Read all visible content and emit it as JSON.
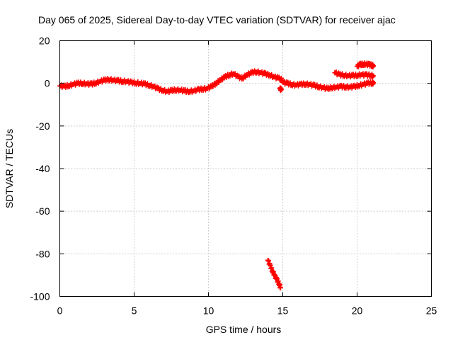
{
  "chart_data": {
    "type": "scatter",
    "title": "Day 065 of 2025, Sidereal Day-to-day VTEC variation (SDTVAR) for receiver ajac",
    "xlabel": "GPS time / hours",
    "ylabel": "SDTVAR / TECUs",
    "xlim": [
      0,
      25
    ],
    "ylim": [
      -100,
      20
    ],
    "xticks": [
      "0",
      "5",
      "10",
      "15",
      "20",
      "25"
    ],
    "yticks": [
      "20",
      "0",
      "-20",
      "-40",
      "-60",
      "-80",
      "-100"
    ],
    "grid": true,
    "marker": "plus",
    "color": "#ff0000",
    "series": [
      {
        "x": [
          0.0,
          0.3,
          0.6,
          0.9,
          1.2,
          1.5,
          1.8,
          2.1,
          2.4,
          2.7,
          3.0,
          3.3,
          3.6,
          3.9,
          4.2,
          4.5,
          4.8,
          5.1,
          5.4,
          5.7,
          6.0,
          6.3,
          6.6,
          6.9,
          7.2,
          7.5,
          7.8,
          8.1,
          8.4,
          8.7,
          9.0,
          9.3,
          9.6,
          9.9,
          10.2,
          10.5,
          10.8,
          11.1,
          11.4,
          11.7,
          12.0,
          12.3,
          12.6,
          12.9,
          13.2,
          13.5,
          13.8,
          14.1,
          14.4,
          14.7,
          15.0
        ],
        "y": [
          -1.2,
          -1.5,
          -1.0,
          -0.5,
          0.0,
          0.0,
          -0.2,
          -0.4,
          0.2,
          0.8,
          1.5,
          1.8,
          1.5,
          1.2,
          1.0,
          0.8,
          0.5,
          0.2,
          0.0,
          -0.3,
          -0.8,
          -1.5,
          -2.5,
          -3.2,
          -3.8,
          -3.5,
          -3.0,
          -3.2,
          -3.6,
          -3.8,
          -3.5,
          -3.0,
          -2.6,
          -2.5,
          -1.5,
          0.0,
          1.5,
          3.0,
          4.0,
          4.5,
          3.0,
          2.5,
          4.0,
          5.0,
          5.5,
          5.0,
          4.5,
          4.0,
          3.0,
          2.5,
          1.5
        ]
      },
      {
        "x": [
          14.8,
          14.9
        ],
        "y": [
          -2.5,
          -3.0
        ]
      },
      {
        "x": [
          15.0,
          15.3,
          15.6,
          15.9,
          16.2,
          16.5,
          16.8,
          17.1,
          17.4,
          17.7,
          18.0,
          18.3,
          18.6,
          18.9,
          19.2,
          19.5,
          19.8,
          20.1,
          20.4,
          20.7,
          21.0,
          21.1
        ],
        "y": [
          0.5,
          0.0,
          -0.5,
          -0.8,
          -0.5,
          -0.3,
          -0.5,
          -1.0,
          -1.5,
          -2.0,
          -2.5,
          -2.0,
          -1.8,
          -1.5,
          -1.6,
          -1.8,
          -1.5,
          -1.0,
          -0.5,
          0.0,
          0.2,
          0.3
        ]
      },
      {
        "x": [
          18.5,
          18.8,
          19.1,
          19.4,
          19.7,
          20.0,
          20.3,
          20.6,
          20.9,
          21.1
        ],
        "y": [
          5.0,
          4.2,
          3.8,
          3.6,
          3.6,
          3.8,
          4.0,
          4.0,
          3.8,
          3.5
        ]
      },
      {
        "x": [
          20.0,
          20.2,
          20.4,
          20.6,
          20.8,
          21.0,
          21.1
        ],
        "y": [
          8.0,
          8.8,
          9.0,
          9.0,
          8.8,
          8.5,
          8.2
        ]
      },
      {
        "x": [
          14.0,
          14.15,
          14.3,
          14.45,
          14.6,
          14.75,
          14.85
        ],
        "y": [
          -83.0,
          -85.5,
          -88.0,
          -90.0,
          -92.0,
          -94.0,
          -96.0
        ]
      }
    ]
  }
}
